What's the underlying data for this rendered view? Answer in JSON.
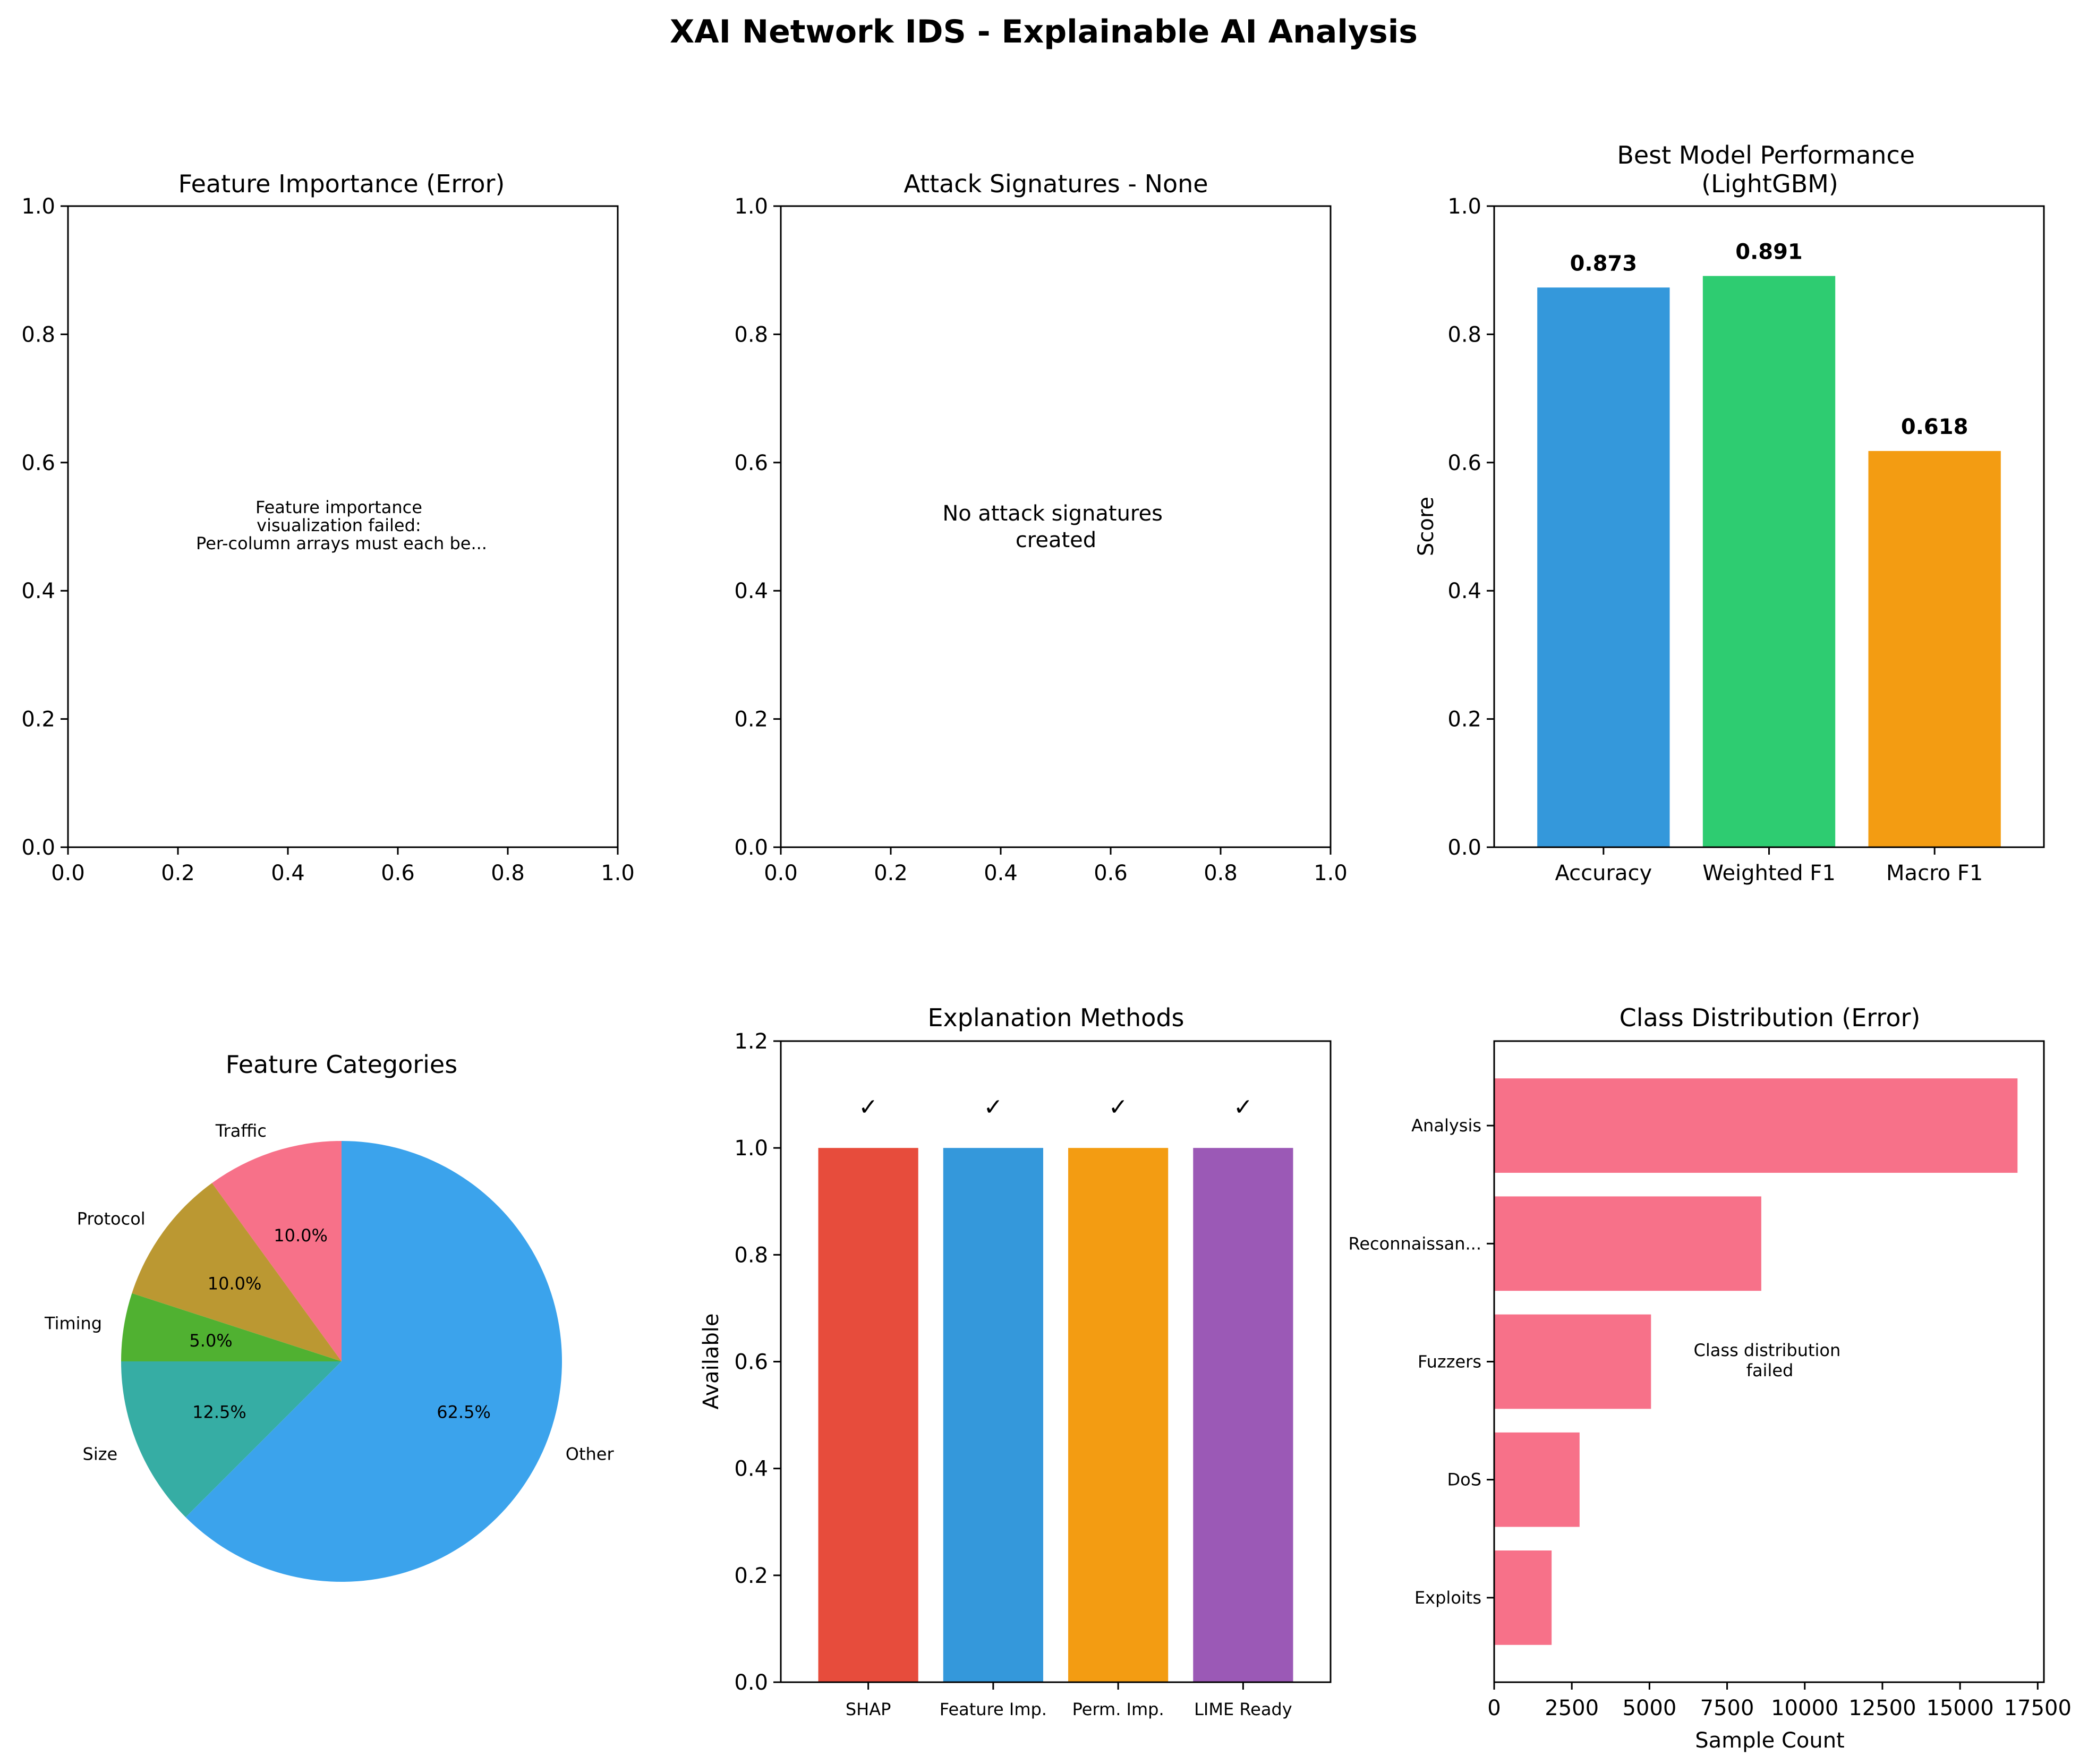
{
  "figure": {
    "title": "XAI Network IDS - Explainable AI Analysis"
  },
  "chart_data": [
    {
      "type": "scatter",
      "title": "Feature Importance (Error)",
      "xlim": [
        0,
        1
      ],
      "ylim": [
        0,
        1
      ],
      "xticks": [
        "0.0",
        "0.2",
        "0.4",
        "0.6",
        "0.8",
        "1.0"
      ],
      "yticks": [
        "0.0",
        "0.2",
        "0.4",
        "0.6",
        "0.8",
        "1.0"
      ],
      "annotation": [
        "Feature importance",
        "visualization failed:",
        "Per-column arrays must each be..."
      ]
    },
    {
      "type": "scatter",
      "title": "Attack Signatures - None",
      "xlim": [
        0,
        1
      ],
      "ylim": [
        0,
        1
      ],
      "xticks": [
        "0.0",
        "0.2",
        "0.4",
        "0.6",
        "0.8",
        "1.0"
      ],
      "yticks": [
        "0.0",
        "0.2",
        "0.4",
        "0.6",
        "0.8",
        "1.0"
      ],
      "annotation": [
        "No attack signatures",
        "created"
      ]
    },
    {
      "type": "bar",
      "title": [
        "Best Model Performance",
        "(LightGBM)"
      ],
      "ylabel": "Score",
      "ylim": [
        0,
        1
      ],
      "yticks": [
        "0.0",
        "0.2",
        "0.4",
        "0.6",
        "0.8",
        "1.0"
      ],
      "categories": [
        "Accuracy",
        "Weighted F1",
        "Macro F1"
      ],
      "values": [
        0.873,
        0.891,
        0.618
      ],
      "labels": [
        "0.873",
        "0.891",
        "0.618"
      ],
      "colors": [
        "#3498db",
        "#2ecc71",
        "#f39c12"
      ]
    },
    {
      "type": "pie",
      "title": "Feature Categories",
      "labels": [
        "Traffic",
        "Protocol",
        "Timing",
        "Size",
        "Other"
      ],
      "values": [
        10.0,
        10.0,
        5.0,
        12.5,
        62.5
      ],
      "pct_labels": [
        "10.0%",
        "10.0%",
        "5.0%",
        "12.5%",
        "62.5%"
      ],
      "colors": [
        "#f77189",
        "#bb9832",
        "#50b131",
        "#36ada4",
        "#3ba3ec"
      ]
    },
    {
      "type": "bar",
      "title": "Explanation Methods",
      "ylabel": "Available",
      "ylim": [
        0,
        1.2
      ],
      "yticks": [
        "0.0",
        "0.2",
        "0.4",
        "0.6",
        "0.8",
        "1.0",
        "1.2"
      ],
      "categories": [
        "SHAP",
        "Feature Imp.",
        "Perm. Imp.",
        "LIME Ready"
      ],
      "values": [
        1,
        1,
        1,
        1
      ],
      "marks": [
        "✓",
        "✓",
        "✓",
        "✓"
      ],
      "colors": [
        "#e74c3c",
        "#3498db",
        "#f39c12",
        "#9b59b6"
      ]
    },
    {
      "type": "bar",
      "orientation": "horizontal",
      "title": "Class Distribution (Error)",
      "xlabel": "Sample Count",
      "xlim": [
        0,
        17700
      ],
      "xticks": [
        "0",
        "2500",
        "5000",
        "7500",
        "10000",
        "12500",
        "15000",
        "17500"
      ],
      "categories": [
        "Analysis",
        "Reconnaissan...",
        "Fuzzers",
        "DoS",
        "Exploits"
      ],
      "values": [
        16850,
        8600,
        5050,
        2750,
        1850
      ],
      "color": "#f77189",
      "annotation": [
        "Class distribution",
        "failed"
      ]
    }
  ]
}
